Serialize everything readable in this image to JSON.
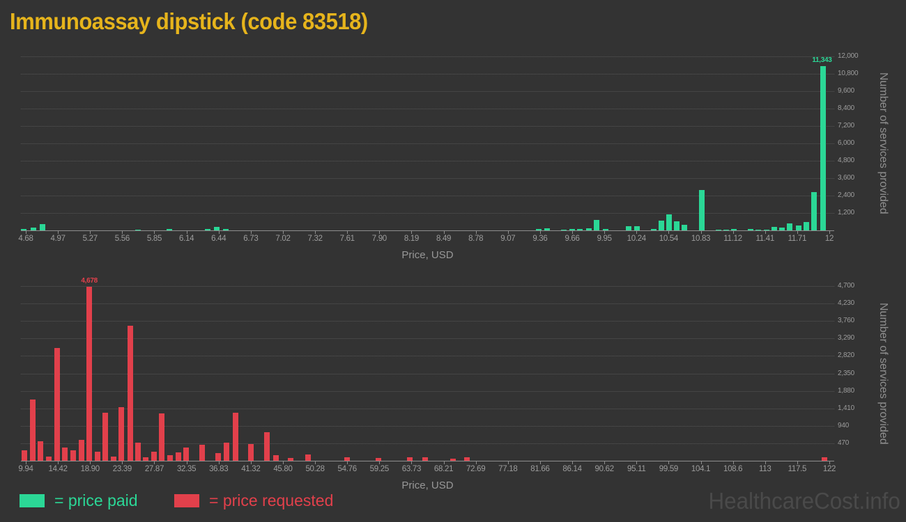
{
  "title": "Immunoassay dipstick (code 83518)",
  "watermark": "HealthcareCost.info",
  "colors": {
    "background": "#333333",
    "title": "#e6b41c",
    "paid": "#2bd796",
    "requested": "#e2404b",
    "grid": "#565656",
    "axis": "#8f8f8f",
    "tick_text": "#9c9c9c",
    "axis_title_text": "#8f8f8f",
    "watermark_text": "#4a4a4a"
  },
  "legend": [
    {
      "label": "= price paid",
      "color": "#2bd796"
    },
    {
      "label": "= price requested",
      "color": "#e2404b"
    }
  ],
  "chart_data": [
    {
      "type": "bar",
      "name": "price paid",
      "color": "#2bd796",
      "xlabel": "Price, USD",
      "ylabel": "Number of services provided",
      "xlim": [
        4.68,
        12
      ],
      "ylim": [
        0,
        12000
      ],
      "grid": true,
      "y_tick_step": 1200,
      "y_ticks": [
        "1,200",
        "2,400",
        "3,600",
        "4,800",
        "6,000",
        "7,200",
        "8,400",
        "9,600",
        "10,800",
        "12,000"
      ],
      "x_ticks": [
        "4.68",
        "4.97",
        "5.27",
        "5.56",
        "5.85",
        "6.14",
        "6.44",
        "6.73",
        "7.02",
        "7.32",
        "7.61",
        "7.90",
        "8.19",
        "8.49",
        "8.78",
        "9.07",
        "9.36",
        "9.66",
        "9.95",
        "10.24",
        "10.54",
        "10.83",
        "11.12",
        "11.41",
        "11.71",
        "12"
      ],
      "annotation": {
        "text": "11,343",
        "price": 11.94,
        "align": "right"
      },
      "points": [
        [
          4.66,
          80
        ],
        [
          4.75,
          200
        ],
        [
          4.83,
          430
        ],
        [
          5.7,
          60
        ],
        [
          5.99,
          80
        ],
        [
          6.34,
          100
        ],
        [
          6.42,
          250
        ],
        [
          6.5,
          100
        ],
        [
          9.35,
          80
        ],
        [
          9.43,
          130
        ],
        [
          9.58,
          65
        ],
        [
          9.66,
          115
        ],
        [
          9.73,
          115
        ],
        [
          9.81,
          130
        ],
        [
          9.88,
          720
        ],
        [
          9.96,
          95
        ],
        [
          10.17,
          270
        ],
        [
          10.25,
          270
        ],
        [
          10.4,
          110
        ],
        [
          10.47,
          690
        ],
        [
          10.54,
          1090
        ],
        [
          10.61,
          610
        ],
        [
          10.68,
          400
        ],
        [
          10.84,
          2800
        ],
        [
          10.99,
          60
        ],
        [
          11.06,
          60
        ],
        [
          11.13,
          110
        ],
        [
          11.28,
          110
        ],
        [
          11.35,
          60
        ],
        [
          11.43,
          60
        ],
        [
          11.5,
          240
        ],
        [
          11.57,
          210
        ],
        [
          11.64,
          465
        ],
        [
          11.72,
          320
        ],
        [
          11.79,
          590
        ],
        [
          11.86,
          2640
        ],
        [
          11.94,
          11343
        ]
      ]
    },
    {
      "type": "bar",
      "name": "price requested",
      "color": "#e2404b",
      "xlabel": "Price, USD",
      "ylabel": "Number of services provided",
      "xlim": [
        9.94,
        122
      ],
      "ylim": [
        0,
        4700
      ],
      "grid": true,
      "y_tick_step": 470,
      "y_ticks": [
        "470",
        "940",
        "1,410",
        "1,880",
        "2,350",
        "2,820",
        "3,290",
        "3,760",
        "4,230",
        "4,700"
      ],
      "x_ticks": [
        "9.94",
        "14.42",
        "18.90",
        "23.39",
        "27.87",
        "32.35",
        "36.83",
        "41.32",
        "45.80",
        "50.28",
        "54.76",
        "59.25",
        "63.73",
        "68.21",
        "72.69",
        "77.18",
        "81.66",
        "86.14",
        "90.62",
        "95.11",
        "99.59",
        "104.1",
        "108.6",
        "113",
        "117.5",
        "122"
      ],
      "annotation": {
        "text": "4,678",
        "price": 18.8,
        "align": "center"
      },
      "points": [
        [
          9.7,
          285
        ],
        [
          10.91,
          1650
        ],
        [
          11.98,
          520
        ],
        [
          13.16,
          115
        ],
        [
          14.27,
          3035
        ],
        [
          15.4,
          350
        ],
        [
          16.52,
          275
        ],
        [
          17.71,
          570
        ],
        [
          18.8,
          4678
        ],
        [
          19.92,
          240
        ],
        [
          21.04,
          1285
        ],
        [
          22.14,
          115
        ],
        [
          23.22,
          1450
        ],
        [
          24.51,
          3630
        ],
        [
          25.55,
          480
        ],
        [
          26.63,
          100
        ],
        [
          27.8,
          240
        ],
        [
          28.92,
          1270
        ],
        [
          30.08,
          150
        ],
        [
          31.21,
          225
        ],
        [
          32.33,
          350
        ],
        [
          34.49,
          430
        ],
        [
          36.8,
          210
        ],
        [
          37.97,
          490
        ],
        [
          39.18,
          1285
        ],
        [
          41.31,
          450
        ],
        [
          43.6,
          770
        ],
        [
          44.82,
          150
        ],
        [
          46.92,
          75
        ],
        [
          49.35,
          160
        ],
        [
          54.77,
          100
        ],
        [
          59.13,
          75
        ],
        [
          63.52,
          90
        ],
        [
          65.62,
          85
        ],
        [
          69.48,
          55
        ],
        [
          71.46,
          85
        ],
        [
          121.32,
          95
        ]
      ]
    }
  ]
}
